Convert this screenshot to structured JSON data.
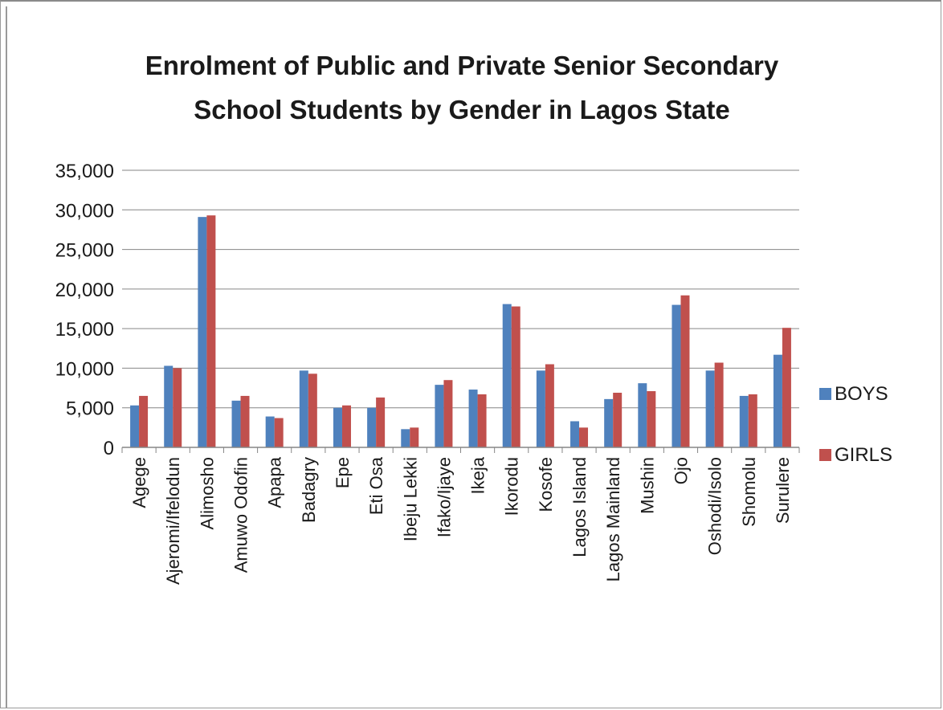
{
  "chart_data": {
    "type": "bar",
    "title": "Enrolment of Public and Private  Senior Secondary School Students by Gender in Lagos State",
    "title_lines": [
      "Enrolment of Public and Private  Senior Secondary",
      "School Students by Gender in Lagos State"
    ],
    "xlabel": "",
    "ylabel": "",
    "ylim": [
      0,
      35000
    ],
    "yticks": [
      "0",
      "5,000",
      "10,000",
      "15,000",
      "20,000",
      "25,000",
      "30,000",
      "35,000"
    ],
    "ytick_values": [
      0,
      5000,
      10000,
      15000,
      20000,
      25000,
      30000,
      35000
    ],
    "grid": true,
    "legend_position": "right",
    "categories": [
      "Agege",
      "Ajeromi/Ifelodun",
      "Alimosho",
      "Amuwo Odofin",
      "Apapa",
      "Badagry",
      "Epe",
      "Eti Osa",
      "Ibeju Lekki",
      "Ifako/Ijaye",
      "Ikeja",
      "Ikorodu",
      "Kosofe",
      "Lagos Island",
      "Lagos Mainland",
      "Mushin",
      "Ojo",
      "Oshodi/Isolo",
      "Shomolu",
      "Surulere"
    ],
    "series": [
      {
        "name": "BOYS",
        "color": "#4f81bd",
        "values": [
          5300,
          10300,
          29100,
          5900,
          3900,
          9700,
          5000,
          5000,
          2300,
          7900,
          7300,
          18100,
          9700,
          3300,
          6100,
          8100,
          18000,
          9700,
          6500,
          11700
        ]
      },
      {
        "name": "GIRLS",
        "color": "#c0504d",
        "values": [
          6500,
          10000,
          29300,
          6500,
          3700,
          9300,
          5300,
          6300,
          2500,
          8500,
          6700,
          17800,
          10500,
          2500,
          6900,
          7100,
          19200,
          10700,
          6700,
          15100
        ]
      }
    ]
  }
}
